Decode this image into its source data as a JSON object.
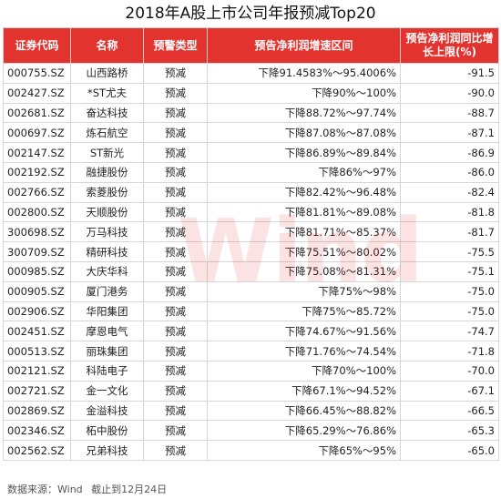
{
  "title": "2018年A股上市公司年报预减Top20",
  "watermark": "Wind",
  "columns": [
    "证券代码",
    "名称",
    "预警类型",
    "预告净利润增速区间",
    "预告净利润同比增长上限(%)"
  ],
  "rows": [
    {
      "code": "000755.SZ",
      "name": "山西路桥",
      "type": "预减",
      "range": "下降91.4583%～95.4006%",
      "upper": "-91.5"
    },
    {
      "code": "002427.SZ",
      "name": "*ST尤夫",
      "type": "预减",
      "range": "下降90%～100%",
      "upper": "-90.0"
    },
    {
      "code": "002681.SZ",
      "name": "奋达科技",
      "type": "预减",
      "range": "下降88.72%～97.74%",
      "upper": "-88.7"
    },
    {
      "code": "000697.SZ",
      "name": "炼石航空",
      "type": "预减",
      "range": "下降87.08%～87.08%",
      "upper": "-87.1"
    },
    {
      "code": "002147.SZ",
      "name": "ST新光",
      "type": "预减",
      "range": "下降86.89%～89.84%",
      "upper": "-86.9"
    },
    {
      "code": "002192.SZ",
      "name": "融捷股份",
      "type": "预减",
      "range": "下降86%～97%",
      "upper": "-86.0"
    },
    {
      "code": "002766.SZ",
      "name": "索菱股份",
      "type": "预减",
      "range": "下降82.42%～96.48%",
      "upper": "-82.4"
    },
    {
      "code": "002800.SZ",
      "name": "天顺股份",
      "type": "预减",
      "range": "下降81.81%～89.08%",
      "upper": "-81.8"
    },
    {
      "code": "300698.SZ",
      "name": "万马科技",
      "type": "预减",
      "range": "下降81.71%～85.37%",
      "upper": "-81.7"
    },
    {
      "code": "300709.SZ",
      "name": "精研科技",
      "type": "预减",
      "range": "下降75.51%～80.02%",
      "upper": "-75.5"
    },
    {
      "code": "000985.SZ",
      "name": "大庆华科",
      "type": "预减",
      "range": "下降75.08%～81.31%",
      "upper": "-75.1"
    },
    {
      "code": "000905.SZ",
      "name": "厦门港务",
      "type": "预减",
      "range": "下降75%～98%",
      "upper": "-75.0"
    },
    {
      "code": "002906.SZ",
      "name": "华阳集团",
      "type": "预减",
      "range": "下降75%～85.72%",
      "upper": "-75.0"
    },
    {
      "code": "002451.SZ",
      "name": "摩恩电气",
      "type": "预减",
      "range": "下降74.67%～91.56%",
      "upper": "-74.7"
    },
    {
      "code": "000513.SZ",
      "name": "丽珠集团",
      "type": "预减",
      "range": "下降71.76%～74.54%",
      "upper": "-71.8"
    },
    {
      "code": "002121.SZ",
      "name": "科陆电子",
      "type": "预减",
      "range": "下降70%～100%",
      "upper": "-70.0"
    },
    {
      "code": "002721.SZ",
      "name": "金一文化",
      "type": "预减",
      "range": "下降67.1%～94.52%",
      "upper": "-67.1"
    },
    {
      "code": "002869.SZ",
      "name": "金溢科技",
      "type": "预减",
      "range": "下降66.45%～88.82%",
      "upper": "-66.5"
    },
    {
      "code": "002346.SZ",
      "name": "柘中股份",
      "type": "预减",
      "range": "下降65.29%～76.86%",
      "upper": "-65.3"
    },
    {
      "code": "002562.SZ",
      "name": "兄弟科技",
      "type": "预减",
      "range": "下降65%～95%",
      "upper": "-65.0"
    }
  ],
  "footer": {
    "source": "数据来源：Wind",
    "cutoff": "截止到12月24日"
  }
}
